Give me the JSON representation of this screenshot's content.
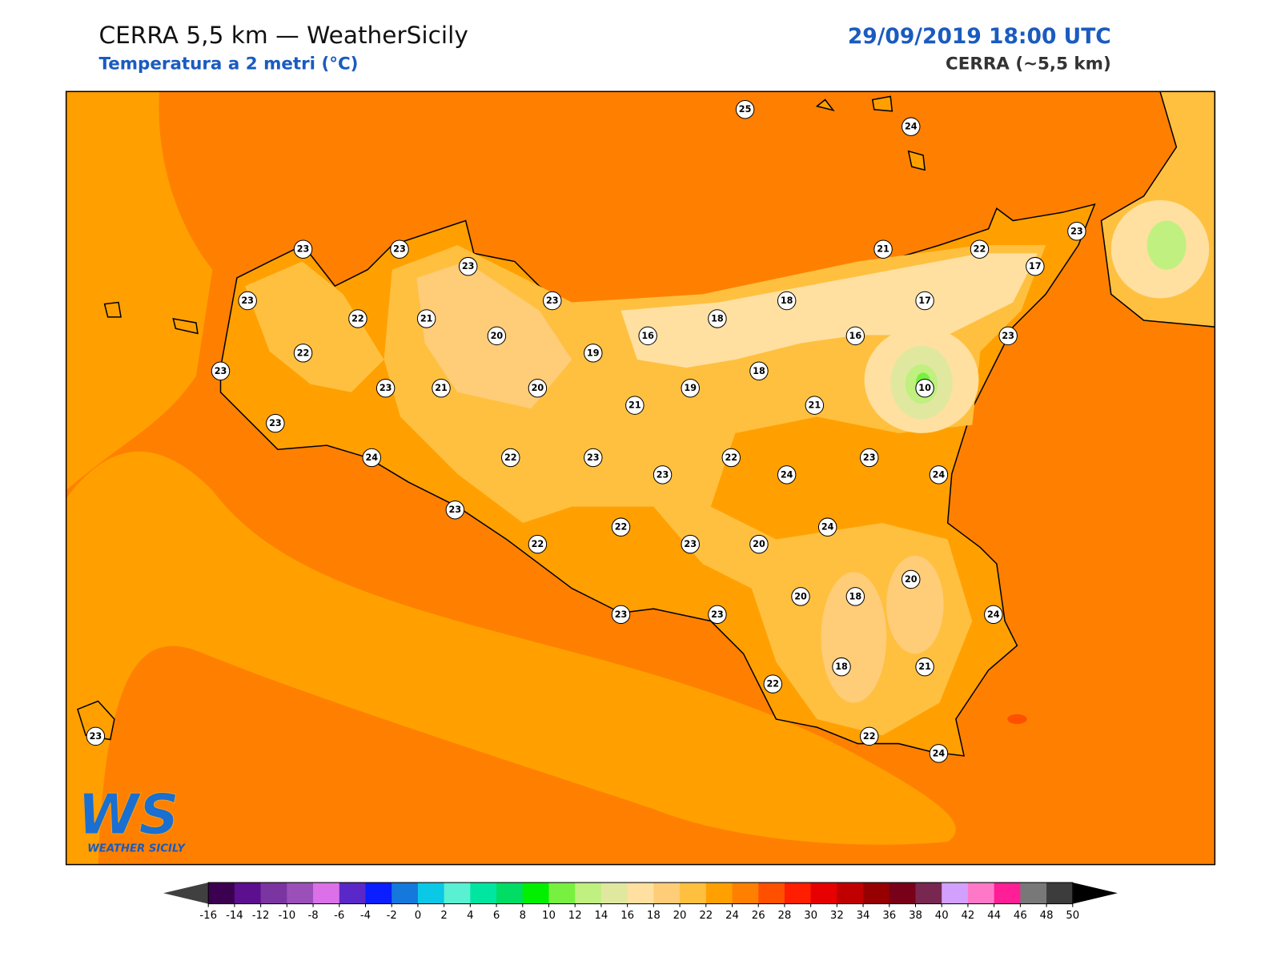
{
  "header": {
    "title": "CERRA 5,5 km — WeatherSicily",
    "subtitle": "Temperatura a 2 metri (°C)",
    "datetime": "29/09/2019 18:00 UTC",
    "model": "CERRA (~5,5 km)"
  },
  "logo": {
    "mark": "WS",
    "text": "WEATHER SICILY"
  },
  "stations": [
    25,
    24,
    23,
    23,
    23,
    23,
    22,
    21,
    20,
    23,
    22,
    23,
    23,
    21,
    20,
    19,
    16,
    18,
    18,
    21,
    22,
    23,
    17,
    17,
    16,
    23,
    18,
    19,
    21,
    21,
    10,
    23,
    24,
    22,
    23,
    23,
    22,
    24,
    23,
    24,
    23,
    24,
    22,
    22,
    23,
    20,
    20,
    18,
    20,
    24,
    23,
    23,
    22,
    18,
    21,
    22,
    24,
    23
  ],
  "colorbar": {
    "ticks": [
      -16,
      -14,
      -12,
      -10,
      -8,
      -6,
      -4,
      -2,
      0,
      2,
      4,
      6,
      8,
      10,
      12,
      14,
      16,
      18,
      20,
      22,
      24,
      26,
      28,
      30,
      32,
      34,
      36,
      38,
      40,
      42,
      44,
      46,
      48,
      50
    ],
    "colors": [
      "#3c0050",
      "#5c1090",
      "#7b35a0",
      "#9a50b8",
      "#dc70e8",
      "#5a28c8",
      "#0a1eff",
      "#1478dc",
      "#0ac8e6",
      "#5af0d2",
      "#00e6a0",
      "#00dc64",
      "#00f000",
      "#78f040",
      "#c0f080",
      "#e0e8a0",
      "#ffe0a0",
      "#ffcc78",
      "#ffc040",
      "#ffa000",
      "#ff8000",
      "#ff5000",
      "#ff1e00",
      "#e60000",
      "#c00000",
      "#960000",
      "#780018",
      "#782850",
      "#d2a0ff",
      "#ff78c8",
      "#ff1e96",
      "#787878",
      "#3c3c3c"
    ],
    "under_color": "#404040",
    "over_color": "#000000"
  }
}
